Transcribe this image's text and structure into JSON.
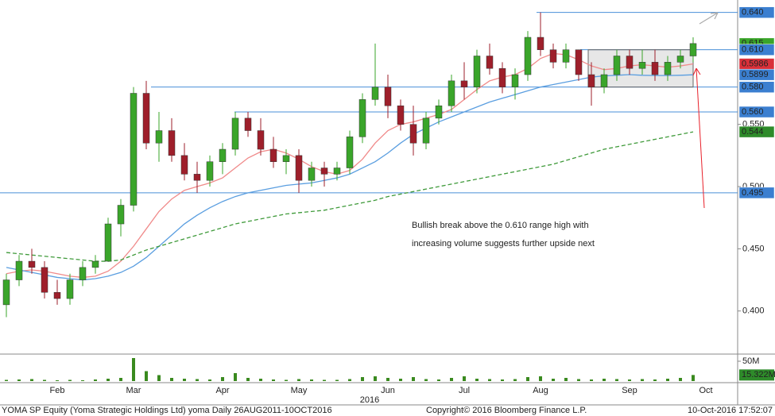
{
  "chart_data": {
    "type": "candlestick",
    "categories": [
      null,
      null,
      null,
      null,
      "Feb",
      null,
      null,
      null,
      null,
      null,
      "Mar",
      null,
      null,
      null,
      null,
      null,
      null,
      "Apr",
      null,
      null,
      null,
      null,
      null,
      "May",
      null,
      null,
      null,
      null,
      null,
      null,
      "Jun",
      null,
      null,
      null,
      null,
      null,
      "Jul",
      null,
      null,
      null,
      null,
      null,
      "Aug",
      null,
      null,
      null,
      null,
      null,
      null,
      "Sep",
      null,
      null,
      null,
      null,
      null,
      "Oct",
      null,
      null
    ],
    "open": [
      0.405,
      0.425,
      0.44,
      0.435,
      0.415,
      0.41,
      0.425,
      0.435,
      0.44,
      0.47,
      0.485,
      0.575,
      0.535,
      0.545,
      0.525,
      0.51,
      0.505,
      0.52,
      0.53,
      0.555,
      0.545,
      0.53,
      0.52,
      0.525,
      0.505,
      0.515,
      0.51,
      0.515,
      0.54,
      0.57,
      0.58,
      0.565,
      0.55,
      0.535,
      0.555,
      0.565,
      0.585,
      0.58,
      0.605,
      0.595,
      0.58,
      0.59,
      0.62,
      0.61,
      0.6,
      0.61,
      0.59,
      0.58,
      0.59,
      0.605,
      0.595,
      0.6,
      0.59,
      0.6,
      0.605,
      null,
      null,
      null
    ],
    "high": [
      0.43,
      0.445,
      0.45,
      0.44,
      0.425,
      0.43,
      0.44,
      0.445,
      0.475,
      0.49,
      0.58,
      0.585,
      0.56,
      0.555,
      0.535,
      0.52,
      0.525,
      0.535,
      0.56,
      0.56,
      0.555,
      0.54,
      0.53,
      0.53,
      0.52,
      0.52,
      0.52,
      0.545,
      0.575,
      0.615,
      0.59,
      0.57,
      0.565,
      0.56,
      0.57,
      0.59,
      0.6,
      0.61,
      0.615,
      0.6,
      0.595,
      0.625,
      0.64,
      0.615,
      0.615,
      0.61,
      0.6,
      0.595,
      0.61,
      0.61,
      0.61,
      0.61,
      0.605,
      0.61,
      0.62,
      null,
      null,
      null
    ],
    "low": [
      0.395,
      0.42,
      0.43,
      0.41,
      0.405,
      0.405,
      0.42,
      0.43,
      0.44,
      0.46,
      0.48,
      0.53,
      0.52,
      0.52,
      0.505,
      0.495,
      0.5,
      0.51,
      0.525,
      0.54,
      0.525,
      0.515,
      0.51,
      0.495,
      0.5,
      0.5,
      0.505,
      0.51,
      0.535,
      0.565,
      0.555,
      0.545,
      0.525,
      0.53,
      0.55,
      0.56,
      0.57,
      0.575,
      0.59,
      0.575,
      0.57,
      0.585,
      0.605,
      0.595,
      0.595,
      0.585,
      0.565,
      0.575,
      0.585,
      0.59,
      0.59,
      0.585,
      0.585,
      0.595,
      0.6,
      null,
      null,
      null
    ],
    "close": [
      0.425,
      0.44,
      0.435,
      0.415,
      0.41,
      0.425,
      0.435,
      0.44,
      0.47,
      0.485,
      0.575,
      0.535,
      0.545,
      0.525,
      0.51,
      0.505,
      0.52,
      0.53,
      0.555,
      0.545,
      0.53,
      0.52,
      0.525,
      0.505,
      0.515,
      0.51,
      0.515,
      0.54,
      0.57,
      0.58,
      0.565,
      0.55,
      0.535,
      0.555,
      0.565,
      0.585,
      0.58,
      0.605,
      0.595,
      0.58,
      0.59,
      0.62,
      0.61,
      0.6,
      0.61,
      0.59,
      0.58,
      0.59,
      0.605,
      0.595,
      0.6,
      0.59,
      0.6,
      0.605,
      0.615,
      null,
      null,
      null
    ],
    "up_color": "#3aa52a",
    "down_color": "#9e1f2b",
    "series": [
      {
        "color": "#f08a8a",
        "dash": false,
        "values": [
          0.43,
          0.432,
          0.433,
          0.432,
          0.43,
          0.428,
          0.427,
          0.428,
          0.432,
          0.44,
          0.452,
          0.466,
          0.48,
          0.49,
          0.497,
          0.5,
          0.503,
          0.507,
          0.515,
          0.523,
          0.528,
          0.53,
          0.527,
          0.522,
          0.516,
          0.512,
          0.51,
          0.513,
          0.522,
          0.535,
          0.545,
          0.55,
          0.552,
          0.555,
          0.558,
          0.562,
          0.57,
          0.578,
          0.585,
          0.588,
          0.59,
          0.595,
          0.603,
          0.607,
          0.606,
          0.602,
          0.597,
          0.594,
          0.595,
          0.597,
          0.598,
          0.597,
          0.596,
          0.597,
          0.5986,
          null,
          null,
          null
        ]
      },
      {
        "color": "#5a9ee0",
        "dash": false,
        "values": [
          0.435,
          0.433,
          0.431,
          0.429,
          0.427,
          0.426,
          0.425,
          0.426,
          0.428,
          0.431,
          0.436,
          0.443,
          0.452,
          0.461,
          0.47,
          0.477,
          0.483,
          0.488,
          0.492,
          0.495,
          0.497,
          0.499,
          0.501,
          0.502,
          0.503,
          0.505,
          0.507,
          0.51,
          0.515,
          0.52,
          0.527,
          0.535,
          0.542,
          0.547,
          0.552,
          0.556,
          0.56,
          0.564,
          0.568,
          0.571,
          0.574,
          0.577,
          0.58,
          0.582,
          0.584,
          0.586,
          0.588,
          0.589,
          0.5895,
          0.59,
          0.5895,
          0.5893,
          0.5893,
          0.5895,
          0.5899,
          null,
          null,
          null
        ]
      },
      {
        "color": "#3f9a3a",
        "dash": true,
        "values": [
          0.447,
          0.446,
          0.445,
          0.444,
          0.443,
          0.442,
          0.441,
          0.44,
          0.44,
          0.441,
          0.445,
          0.449,
          0.452,
          0.455,
          0.458,
          0.461,
          0.464,
          0.467,
          0.47,
          0.472,
          0.474,
          0.476,
          0.478,
          0.479,
          0.48,
          0.481,
          0.483,
          0.485,
          0.487,
          0.489,
          0.492,
          0.494,
          0.496,
          0.498,
          0.5,
          0.502,
          0.504,
          0.506,
          0.508,
          0.51,
          0.512,
          0.514,
          0.516,
          0.518,
          0.521,
          0.524,
          0.527,
          0.53,
          0.532,
          0.534,
          0.536,
          0.538,
          0.54,
          0.542,
          0.544,
          null,
          null,
          null
        ]
      }
    ],
    "ylim": [
      0.366,
      0.65
    ],
    "yticks": [
      {
        "value": 0.4,
        "label": "0.400"
      },
      {
        "value": 0.45,
        "label": "0.450"
      },
      {
        "value": 0.5,
        "label": "0.500"
      },
      {
        "value": 0.55,
        "label": "0.550"
      }
    ],
    "levels": [
      0.64,
      0.61,
      0.58,
      0.56,
      0.495
    ],
    "level_color": "#4a8fd8",
    "price_tags": [
      {
        "value": 0.64,
        "label": "0.640",
        "color": "#3b7fd0"
      },
      {
        "value": 0.615,
        "label": "0.615",
        "color": "#3aa52a"
      },
      {
        "value": 0.61,
        "label": "0.610",
        "color": "#3b7fd0"
      },
      {
        "value": 0.5986,
        "label": "0.5986",
        "color": "#d9303a"
      },
      {
        "value": 0.5899,
        "label": "0.5899",
        "color": "#3b7fd0"
      },
      {
        "value": 0.58,
        "label": "0.580",
        "color": "#3b7fd0"
      },
      {
        "value": 0.56,
        "label": "0.560",
        "color": "#3b7fd0"
      },
      {
        "value": 0.544,
        "label": "0.544",
        "color": "#2e8b2a"
      },
      {
        "value": 0.495,
        "label": "0.495",
        "color": "#3b7fd0"
      }
    ],
    "volume": {
      "values": [
        3,
        4,
        5,
        3,
        2,
        3,
        2,
        4,
        6,
        8,
        58,
        25,
        15,
        8,
        6,
        5,
        4,
        10,
        20,
        8,
        6,
        4,
        3,
        5,
        4,
        3,
        3,
        5,
        10,
        12,
        8,
        6,
        10,
        5,
        4,
        8,
        12,
        6,
        5,
        4,
        5,
        10,
        12,
        6,
        8,
        5,
        4,
        6,
        5,
        4,
        5,
        4,
        6,
        8,
        15.322,
        null,
        null,
        null
      ],
      "color": "#3a8a1f",
      "ylim": [
        0,
        66
      ],
      "yticks": [
        {
          "value": 50,
          "label": "50M"
        }
      ],
      "last_label": "15.322M",
      "last_color": "#2e8b2a"
    },
    "annotation": [
      "Bullish break above the 0.610 range high with",
      "increasing volume suggests further upside next"
    ],
    "annotation_color": "#e8202a",
    "year_label": "2016",
    "footer_left": "YOMA SP Equity (Yoma Strategic Holdings Ltd) yoma  Daily 26AUG2011-10OCT2016",
    "footer_center": "Copyright© 2016 Bloomberg Finance L.P.",
    "footer_right": "10-Oct-2016 17:52:07"
  }
}
